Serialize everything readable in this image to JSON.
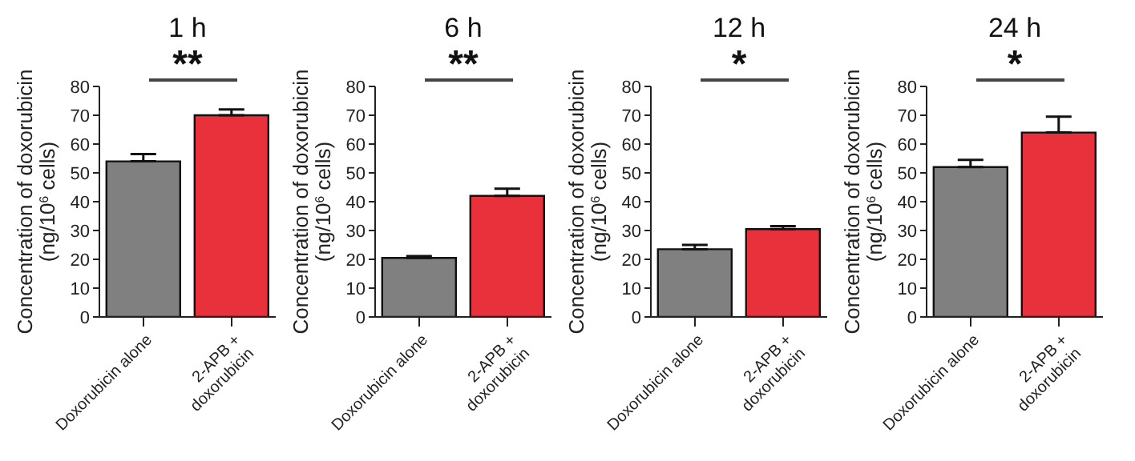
{
  "chart_data": [
    {
      "type": "bar",
      "title": "1 h",
      "ylabel": "Concentration of doxorubicin\n(ng/10$^{6}$ cells)",
      "categories": [
        "Doxorubicin alone",
        "2-APB + doxorubicin"
      ],
      "values": [
        54,
        70
      ],
      "errors": [
        2.5,
        2
      ],
      "colors": [
        "#808080",
        "#e8313a"
      ],
      "ylim": [
        0,
        80
      ],
      "yticks": [
        0,
        10,
        20,
        30,
        40,
        50,
        60,
        70,
        80
      ],
      "annotations": [
        "**"
      ]
    },
    {
      "type": "bar",
      "title": "6 h",
      "ylabel": "Concentration of doxorubicin\n(ng/10$^{6}$ cells)",
      "categories": [
        "Doxorubicin alone",
        "2-APB + doxorubicin"
      ],
      "values": [
        20.5,
        42
      ],
      "errors": [
        0.6,
        2.5
      ],
      "colors": [
        "#808080",
        "#e8313a"
      ],
      "ylim": [
        0,
        80
      ],
      "yticks": [
        0,
        10,
        20,
        30,
        40,
        50,
        60,
        70,
        80
      ],
      "annotations": [
        "**"
      ]
    },
    {
      "type": "bar",
      "title": "12 h",
      "ylabel": "Concentration of doxorubicin\n(ng/10$^{6}$ cells)",
      "categories": [
        "Doxorubicin alone",
        "2-APB + doxorubicin"
      ],
      "values": [
        23.5,
        30.5
      ],
      "errors": [
        1.5,
        1
      ],
      "colors": [
        "#808080",
        "#e8313a"
      ],
      "ylim": [
        0,
        80
      ],
      "yticks": [
        0,
        10,
        20,
        30,
        40,
        50,
        60,
        70,
        80
      ],
      "annotations": [
        "*"
      ]
    },
    {
      "type": "bar",
      "title": "24 h",
      "ylabel": "Concentration of doxorubicin\n(ng/10$^{6}$ cells)",
      "categories": [
        "Doxorubicin alone",
        "2-APB + doxorubicin"
      ],
      "values": [
        52,
        64
      ],
      "errors": [
        2.5,
        5.5
      ],
      "colors": [
        "#808080",
        "#e8313a"
      ],
      "ylim": [
        0,
        80
      ],
      "yticks": [
        0,
        10,
        20,
        30,
        40,
        50,
        60,
        70,
        80
      ],
      "annotations": [
        "*"
      ]
    }
  ]
}
